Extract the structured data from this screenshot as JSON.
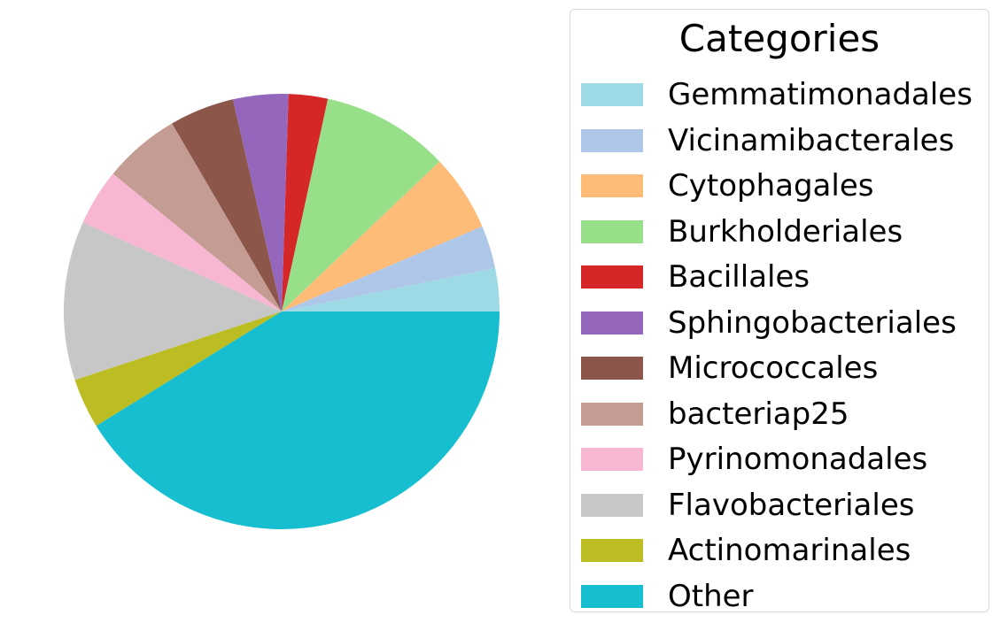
{
  "chart_data": {
    "type": "pie",
    "title": "",
    "legend_title": "Categories",
    "legend_position": "right",
    "start_angle": 0,
    "direction": "counterclockwise",
    "slices": [
      {
        "label": "Gemmatimonadales",
        "value": 3.2,
        "color": "#9edae5"
      },
      {
        "label": "Vicinamibacterales",
        "value": 3.2,
        "color": "#aec7e8"
      },
      {
        "label": "Cytophagales",
        "value": 5.7,
        "color": "#ffbb78"
      },
      {
        "label": "Burkholderiales",
        "value": 9.5,
        "color": "#98df8a"
      },
      {
        "label": "Bacillales",
        "value": 2.9,
        "color": "#d62728"
      },
      {
        "label": "Sphingobacteriales",
        "value": 4.1,
        "color": "#9467bd"
      },
      {
        "label": "Micrococcales",
        "value": 4.8,
        "color": "#8c564b"
      },
      {
        "label": "bacteriap25",
        "value": 5.7,
        "color": "#c49c94"
      },
      {
        "label": "Pyrinomonadales",
        "value": 4.2,
        "color": "#f7b6d2"
      },
      {
        "label": "Flavobacteriales",
        "value": 11.8,
        "color": "#c7c7c7"
      },
      {
        "label": "Actinomarinales",
        "value": 3.7,
        "color": "#bcbd22"
      },
      {
        "label": "Other",
        "value": 41.2,
        "color": "#17becf"
      }
    ]
  }
}
